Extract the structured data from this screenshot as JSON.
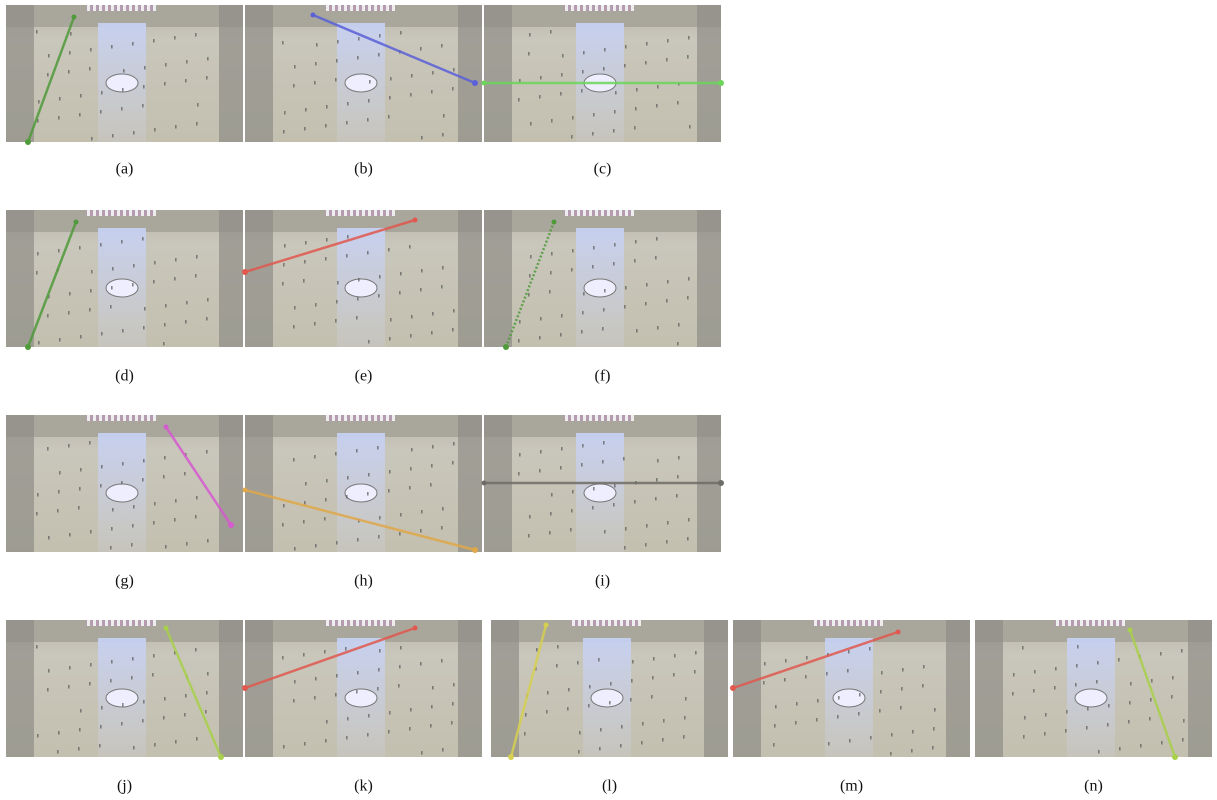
{
  "figure": {
    "panels": [
      {
        "caption": "(a)"
      },
      {
        "caption": "(b)"
      },
      {
        "caption": "(c)"
      },
      {
        "caption": "(d)"
      },
      {
        "caption": "(e)"
      },
      {
        "caption": "(f)"
      },
      {
        "caption": "(g)"
      },
      {
        "caption": "(h)"
      },
      {
        "caption": "(i)"
      },
      {
        "caption": "(j)"
      },
      {
        "caption": "(k)"
      },
      {
        "caption": "(l)"
      },
      {
        "caption": "(m)"
      },
      {
        "caption": "(n)"
      }
    ]
  }
}
